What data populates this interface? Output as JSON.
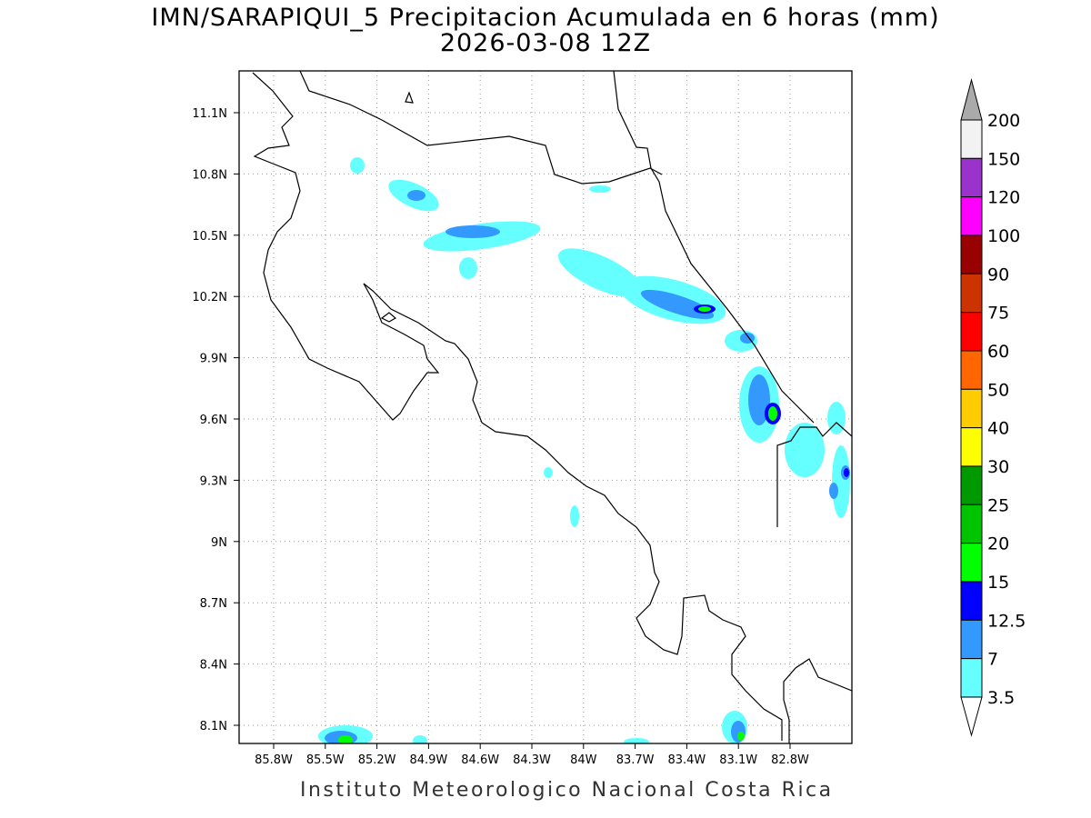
{
  "title": "IMN/SARAPIQUI_5 Precipitacion Acumulada en 6 horas (mm)",
  "subtitle": "2026-03-08 12Z",
  "footer": "Instituto Meteorologico Nacional Costa Rica",
  "lon_ticks": [
    "85.8W",
    "85.5W",
    "85.2W",
    "84.9W",
    "84.6W",
    "84.3W",
    "84W",
    "83.7W",
    "83.4W",
    "83.1W",
    "82.8W"
  ],
  "lat_ticks": [
    "11.1N",
    "10.8N",
    "10.5N",
    "10.2N",
    "9.9N",
    "9.6N",
    "9.3N",
    "9N",
    "8.7N",
    "8.4N",
    "8.1N"
  ],
  "colorbar": {
    "labels": [
      "200",
      "150",
      "120",
      "100",
      "90",
      "75",
      "60",
      "50",
      "40",
      "30",
      "25",
      "20",
      "15",
      "12.5",
      "7",
      "3.5"
    ],
    "colors": [
      "#f2f2f2",
      "#9933cc",
      "#ff00ff",
      "#990000",
      "#cc3300",
      "#ff0000",
      "#ff6600",
      "#ffcc00",
      "#ffff00",
      "#009900",
      "#00c400",
      "#00ff00",
      "#0000ff",
      "#3399ff",
      "#66ffff"
    ],
    "over_color": "#aaaaaa",
    "under_color": "#ffffff"
  }
}
